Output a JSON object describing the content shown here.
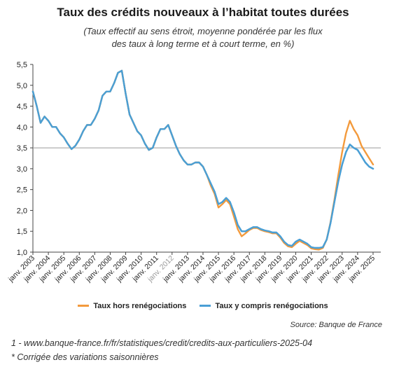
{
  "title": "Taux des crédits nouveaux à l’habitat toutes durées",
  "subtitle": [
    "(Taux effectif au sens étroit, moyenne pondérée par les flux",
    "des taux à long terme et à court terme, en %)"
  ],
  "legend": [
    {
      "label": "Taux hors renégociations",
      "color": "#f39a3c"
    },
    {
      "label": "Taux y compris renégociations",
      "color": "#4a9fd5"
    }
  ],
  "source": "Source: Banque de France",
  "footnotes": [
    "1 - www.banque-france.fr/fr/statistiques/credit/credits-aux-particuliers-2025-04",
    "* Corrigée des variations saisonnières"
  ],
  "chart_data": {
    "type": "line",
    "title": "Taux des crédits nouveaux à l’habitat toutes durées",
    "ylim": [
      1.0,
      5.5
    ],
    "yticks": [
      "1,0",
      "1,5",
      "2,0",
      "2,5",
      "3,0",
      "3,5",
      "4,0",
      "4,5",
      "5,0",
      "5,5"
    ],
    "reference_line": 3.5,
    "grid": false,
    "legend_position": "bottom",
    "xticks": [
      "janv. 2003",
      "janv. 2004",
      "janv. 2005",
      "janv. 2006",
      "janv. 2007",
      "janv. 2008",
      "janv. 2009",
      "janv. 2010",
      "janv. 2011",
      "janv. 2012",
      "janv. 2013",
      "janv. 2014",
      "janv. 2015",
      "janv. 2016",
      "janv. 2017",
      "janv. 2018",
      "janv. 2019",
      "janv. 2020",
      "janv. 2021",
      "janv. 2022",
      "janv. 2023",
      "janv. 2024",
      "janv. 2025"
    ],
    "series": [
      {
        "name": "Taux y compris renégociations",
        "color": "#4a9fd5",
        "points": [
          [
            2003.0,
            4.85
          ],
          [
            2003.25,
            4.5
          ],
          [
            2003.5,
            4.1
          ],
          [
            2003.75,
            4.25
          ],
          [
            2004.0,
            4.15
          ],
          [
            2004.25,
            4.0
          ],
          [
            2004.5,
            4.0
          ],
          [
            2004.75,
            3.85
          ],
          [
            2005.0,
            3.75
          ],
          [
            2005.25,
            3.6
          ],
          [
            2005.5,
            3.47
          ],
          [
            2005.75,
            3.55
          ],
          [
            2006.0,
            3.7
          ],
          [
            2006.25,
            3.9
          ],
          [
            2006.5,
            4.05
          ],
          [
            2006.75,
            4.05
          ],
          [
            2007.0,
            4.2
          ],
          [
            2007.25,
            4.4
          ],
          [
            2007.5,
            4.75
          ],
          [
            2007.75,
            4.85
          ],
          [
            2008.0,
            4.85
          ],
          [
            2008.25,
            5.05
          ],
          [
            2008.5,
            5.3
          ],
          [
            2008.75,
            5.35
          ],
          [
            2009.0,
            4.8
          ],
          [
            2009.25,
            4.3
          ],
          [
            2009.5,
            4.1
          ],
          [
            2009.75,
            3.9
          ],
          [
            2010.0,
            3.8
          ],
          [
            2010.25,
            3.6
          ],
          [
            2010.5,
            3.45
          ],
          [
            2010.75,
            3.5
          ],
          [
            2011.0,
            3.75
          ],
          [
            2011.25,
            3.95
          ],
          [
            2011.5,
            3.95
          ],
          [
            2011.75,
            4.05
          ],
          [
            2012.0,
            3.8
          ],
          [
            2012.25,
            3.55
          ],
          [
            2012.5,
            3.35
          ],
          [
            2012.75,
            3.2
          ],
          [
            2013.0,
            3.1
          ],
          [
            2013.25,
            3.1
          ],
          [
            2013.5,
            3.15
          ],
          [
            2013.75,
            3.15
          ],
          [
            2014.0,
            3.05
          ],
          [
            2014.25,
            2.85
          ],
          [
            2014.5,
            2.65
          ],
          [
            2014.75,
            2.45
          ],
          [
            2015.0,
            2.15
          ],
          [
            2015.25,
            2.2
          ],
          [
            2015.5,
            2.3
          ],
          [
            2015.75,
            2.2
          ],
          [
            2016.0,
            1.95
          ],
          [
            2016.25,
            1.65
          ],
          [
            2016.5,
            1.5
          ],
          [
            2016.75,
            1.5
          ],
          [
            2017.0,
            1.55
          ],
          [
            2017.25,
            1.6
          ],
          [
            2017.5,
            1.6
          ],
          [
            2017.75,
            1.55
          ],
          [
            2018.0,
            1.52
          ],
          [
            2018.25,
            1.5
          ],
          [
            2018.5,
            1.47
          ],
          [
            2018.75,
            1.47
          ],
          [
            2019.0,
            1.38
          ],
          [
            2019.25,
            1.25
          ],
          [
            2019.5,
            1.17
          ],
          [
            2019.75,
            1.15
          ],
          [
            2020.0,
            1.25
          ],
          [
            2020.25,
            1.3
          ],
          [
            2020.5,
            1.25
          ],
          [
            2020.75,
            1.2
          ],
          [
            2021.0,
            1.12
          ],
          [
            2021.25,
            1.1
          ],
          [
            2021.5,
            1.1
          ],
          [
            2021.75,
            1.12
          ],
          [
            2022.0,
            1.3
          ],
          [
            2022.25,
            1.7
          ],
          [
            2022.5,
            2.2
          ],
          [
            2022.75,
            2.7
          ],
          [
            2023.0,
            3.1
          ],
          [
            2023.25,
            3.4
          ],
          [
            2023.5,
            3.58
          ],
          [
            2023.75,
            3.5
          ],
          [
            2024.0,
            3.45
          ],
          [
            2024.25,
            3.3
          ],
          [
            2024.5,
            3.15
          ],
          [
            2024.75,
            3.05
          ],
          [
            2025.0,
            3.0
          ]
        ]
      },
      {
        "name": "Taux hors renégociations",
        "color": "#f39a3c",
        "points": [
          [
            2003.0,
            4.85
          ],
          [
            2003.25,
            4.5
          ],
          [
            2003.5,
            4.1
          ],
          [
            2003.75,
            4.25
          ],
          [
            2004.0,
            4.15
          ],
          [
            2004.25,
            4.0
          ],
          [
            2004.5,
            4.0
          ],
          [
            2004.75,
            3.85
          ],
          [
            2005.0,
            3.75
          ],
          [
            2005.25,
            3.6
          ],
          [
            2005.5,
            3.47
          ],
          [
            2005.75,
            3.55
          ],
          [
            2006.0,
            3.7
          ],
          [
            2006.25,
            3.9
          ],
          [
            2006.5,
            4.05
          ],
          [
            2006.75,
            4.05
          ],
          [
            2007.0,
            4.2
          ],
          [
            2007.25,
            4.4
          ],
          [
            2007.5,
            4.75
          ],
          [
            2007.75,
            4.85
          ],
          [
            2008.0,
            4.85
          ],
          [
            2008.25,
            5.05
          ],
          [
            2008.5,
            5.3
          ],
          [
            2008.75,
            5.35
          ],
          [
            2009.0,
            4.8
          ],
          [
            2009.25,
            4.3
          ],
          [
            2009.5,
            4.1
          ],
          [
            2009.75,
            3.9
          ],
          [
            2010.0,
            3.8
          ],
          [
            2010.25,
            3.6
          ],
          [
            2010.5,
            3.45
          ],
          [
            2010.75,
            3.5
          ],
          [
            2011.0,
            3.75
          ],
          [
            2011.25,
            3.95
          ],
          [
            2011.5,
            3.95
          ],
          [
            2011.75,
            4.05
          ],
          [
            2012.0,
            3.8
          ],
          [
            2012.25,
            3.55
          ],
          [
            2012.5,
            3.35
          ],
          [
            2012.75,
            3.2
          ],
          [
            2013.0,
            3.1
          ],
          [
            2013.25,
            3.1
          ],
          [
            2013.5,
            3.15
          ],
          [
            2013.75,
            3.15
          ],
          [
            2014.0,
            3.05
          ],
          [
            2014.25,
            2.85
          ],
          [
            2014.5,
            2.6
          ],
          [
            2014.75,
            2.4
          ],
          [
            2015.0,
            2.07
          ],
          [
            2015.25,
            2.15
          ],
          [
            2015.5,
            2.25
          ],
          [
            2015.75,
            2.15
          ],
          [
            2016.0,
            1.85
          ],
          [
            2016.25,
            1.55
          ],
          [
            2016.5,
            1.38
          ],
          [
            2016.75,
            1.45
          ],
          [
            2017.0,
            1.53
          ],
          [
            2017.25,
            1.58
          ],
          [
            2017.5,
            1.58
          ],
          [
            2017.75,
            1.53
          ],
          [
            2018.0,
            1.5
          ],
          [
            2018.25,
            1.48
          ],
          [
            2018.5,
            1.45
          ],
          [
            2018.75,
            1.45
          ],
          [
            2019.0,
            1.35
          ],
          [
            2019.25,
            1.22
          ],
          [
            2019.5,
            1.14
          ],
          [
            2019.75,
            1.12
          ],
          [
            2020.0,
            1.2
          ],
          [
            2020.25,
            1.27
          ],
          [
            2020.5,
            1.22
          ],
          [
            2020.75,
            1.17
          ],
          [
            2021.0,
            1.09
          ],
          [
            2021.25,
            1.07
          ],
          [
            2021.5,
            1.06
          ],
          [
            2021.75,
            1.1
          ],
          [
            2022.0,
            1.3
          ],
          [
            2022.25,
            1.72
          ],
          [
            2022.5,
            2.25
          ],
          [
            2022.75,
            2.85
          ],
          [
            2023.0,
            3.4
          ],
          [
            2023.25,
            3.85
          ],
          [
            2023.5,
            4.15
          ],
          [
            2023.75,
            3.95
          ],
          [
            2024.0,
            3.8
          ],
          [
            2024.25,
            3.55
          ],
          [
            2024.5,
            3.4
          ],
          [
            2024.75,
            3.25
          ],
          [
            2025.0,
            3.1
          ]
        ]
      }
    ]
  }
}
